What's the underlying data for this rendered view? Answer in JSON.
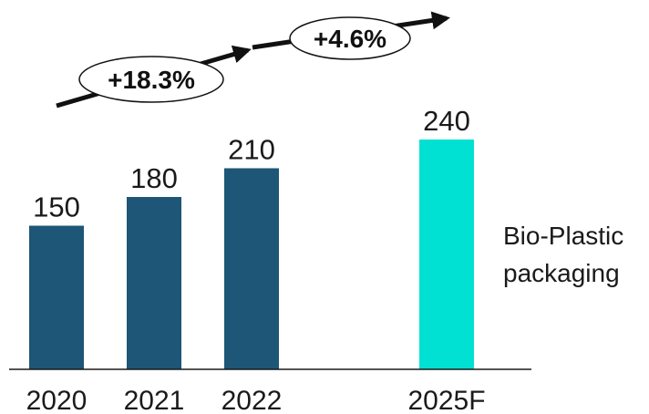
{
  "chart_data": {
    "type": "bar",
    "categories": [
      "2020",
      "2021",
      "2022",
      "2025F"
    ],
    "values": [
      150,
      180,
      210,
      240
    ],
    "value_labels": [
      "150",
      "180",
      "210",
      "240"
    ],
    "legend": [
      "Bio-Plastic",
      "packaging"
    ],
    "title": "",
    "xlabel": "",
    "ylabel": "",
    "grid": false,
    "growth_annotations": [
      {
        "label": "+18.3%",
        "from": "2020",
        "to": "2022"
      },
      {
        "label": "+4.6%",
        "from": "2022",
        "to": "2025F"
      }
    ],
    "colors": {
      "actual": "#1d5676",
      "forecast": "#00e1d3",
      "axis": "#1a1a1a",
      "arrow": "#111111"
    }
  }
}
